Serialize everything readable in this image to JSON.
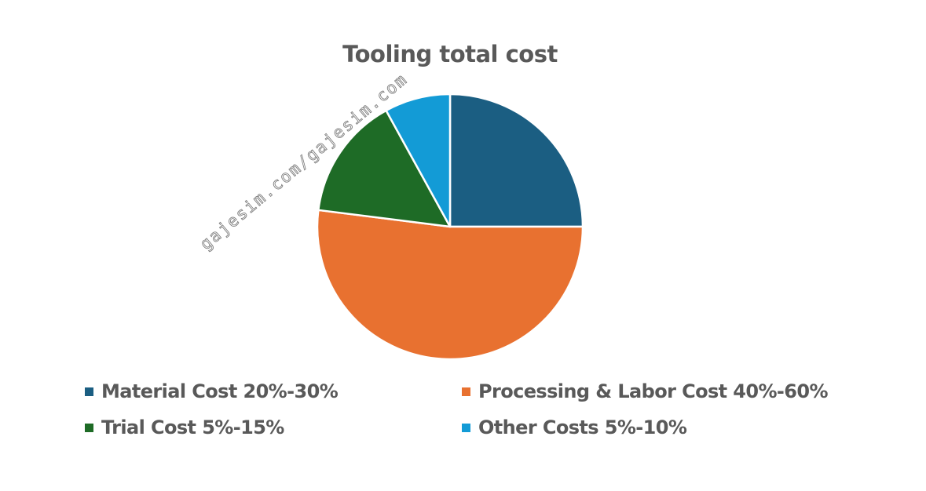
{
  "chart_data": {
    "type": "pie",
    "title": "Tooling total cost",
    "slices": [
      {
        "label": "Material Cost 20%-30%",
        "value": 25,
        "color": "#1b5e82"
      },
      {
        "label": "Processing & Labor Cost 40%-60%",
        "value": 52,
        "color": "#e87130"
      },
      {
        "label": "Trial Cost 5%-15%",
        "value": 15,
        "color": "#1e6b26"
      },
      {
        "label": "Other Costs 5%-10%",
        "value": 8,
        "color": "#139bd6"
      }
    ],
    "legend_position": "bottom"
  },
  "watermark": "gajesim.com/gajesim.com"
}
